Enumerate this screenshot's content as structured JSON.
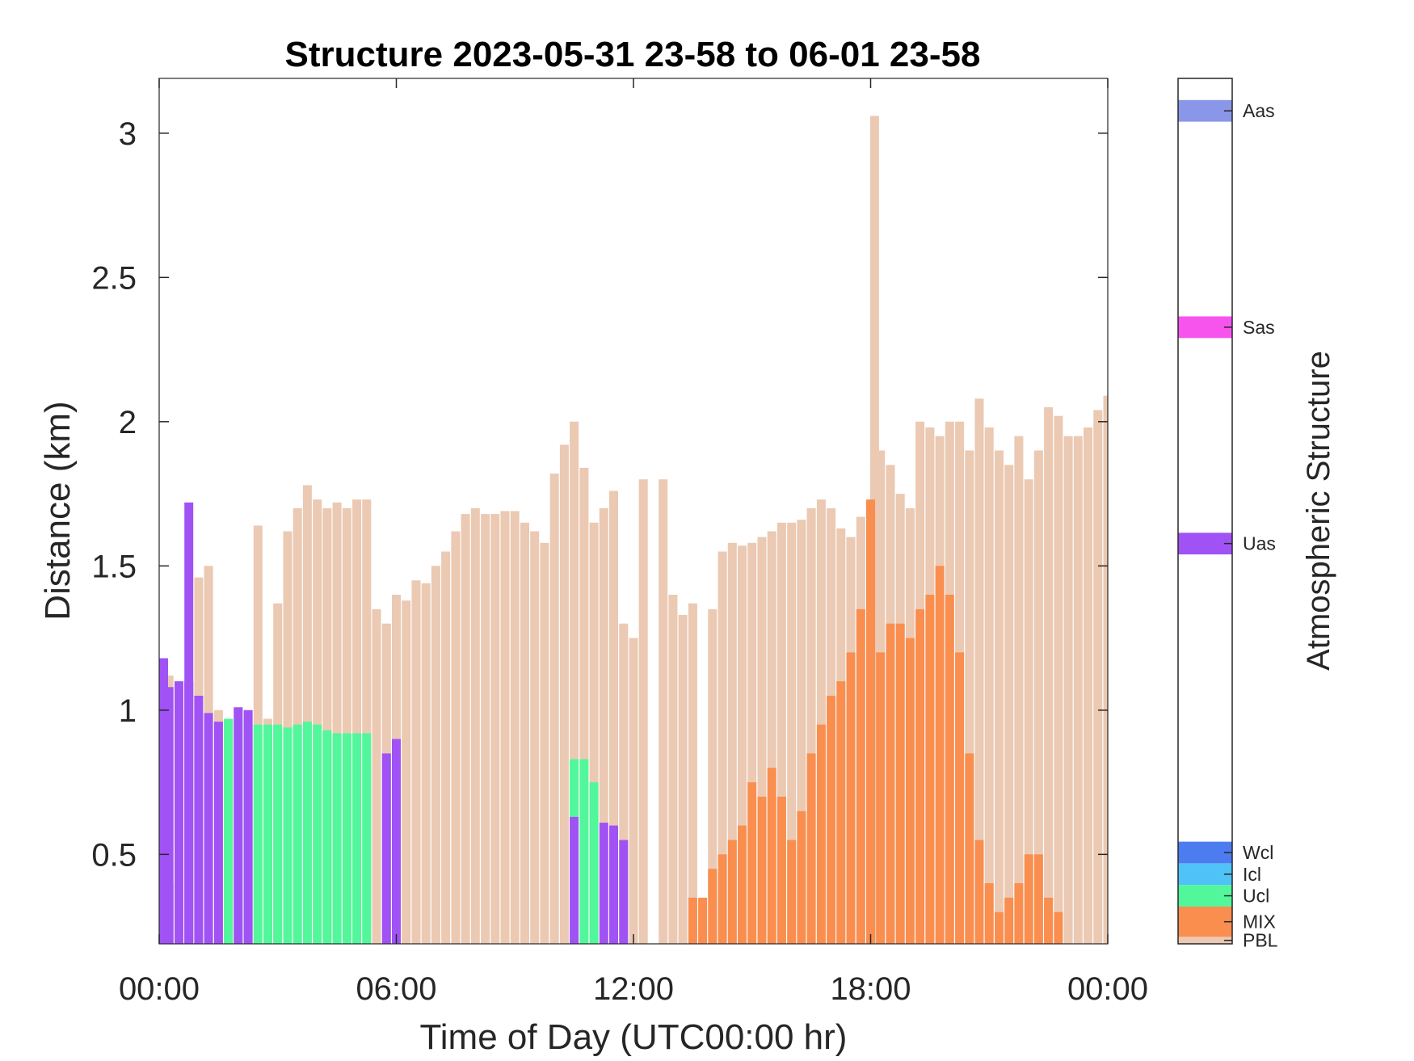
{
  "chart_data": {
    "type": "area",
    "title": "Structure 2023-05-31 23-58 to 06-01 23-58",
    "xlabel": "Time of Day (UTC00:00 hr)",
    "ylabel": "Distance (km)",
    "xlim": [
      0,
      24
    ],
    "ylim": [
      0.19,
      3.19
    ],
    "x_tick_labels": [
      "00:00",
      "06:00",
      "12:00",
      "18:00",
      "00:00"
    ],
    "x_tick_values": [
      0,
      6,
      12,
      18,
      24
    ],
    "y_ticks": [
      0.5,
      1,
      1.5,
      2,
      2.5,
      3
    ],
    "y_tick_labels": [
      "0.5",
      "1",
      "1.5",
      "2",
      "2.5",
      "3"
    ],
    "colorbar": {
      "label": "Atmospheric Structure",
      "categories": [
        {
          "name": "Aas",
          "color": "#8a96e8"
        },
        {
          "name": "Sas",
          "color": "#f754ee"
        },
        {
          "name": "Uas",
          "color": "#a052f5"
        },
        {
          "name": "Wcl",
          "color": "#4d7bf0"
        },
        {
          "name": "Icl",
          "color": "#4fc3f7"
        },
        {
          "name": "Ucl",
          "color": "#52f79b"
        },
        {
          "name": "MIX",
          "color": "#f98e4f"
        },
        {
          "name": "PBL",
          "color": "#ebc9b2"
        }
      ]
    },
    "series": [
      {
        "name": "PBL",
        "color": "#ebc9b2",
        "points": [
          [
            0.0,
            1.18
          ],
          [
            0.25,
            1.12
          ],
          [
            0.5,
            1.03
          ],
          [
            0.75,
            1.1
          ],
          [
            1.0,
            1.46
          ],
          [
            1.25,
            1.5
          ],
          [
            1.5,
            1.0
          ],
          [
            1.75,
            0.97
          ],
          [
            2.0,
            1.01
          ],
          [
            2.25,
            1.0
          ],
          [
            2.5,
            1.64
          ],
          [
            2.75,
            0.97
          ],
          [
            3.0,
            1.37
          ],
          [
            3.25,
            1.62
          ],
          [
            3.5,
            1.7
          ],
          [
            3.75,
            1.78
          ],
          [
            4.0,
            1.73
          ],
          [
            4.25,
            1.7
          ],
          [
            4.5,
            1.72
          ],
          [
            4.75,
            1.7
          ],
          [
            5.0,
            1.73
          ],
          [
            5.25,
            1.73
          ],
          [
            5.5,
            1.35
          ],
          [
            5.75,
            1.3
          ],
          [
            6.0,
            1.4
          ],
          [
            6.25,
            1.38
          ],
          [
            6.5,
            1.45
          ],
          [
            6.75,
            1.44
          ],
          [
            7.0,
            1.5
          ],
          [
            7.25,
            1.55
          ],
          [
            7.5,
            1.62
          ],
          [
            7.75,
            1.68
          ],
          [
            8.0,
            1.7
          ],
          [
            8.25,
            1.68
          ],
          [
            8.5,
            1.68
          ],
          [
            8.75,
            1.69
          ],
          [
            9.0,
            1.69
          ],
          [
            9.25,
            1.65
          ],
          [
            9.5,
            1.62
          ],
          [
            9.75,
            1.58
          ],
          [
            10.0,
            1.82
          ],
          [
            10.25,
            1.92
          ],
          [
            10.5,
            2.0
          ],
          [
            10.75,
            1.84
          ],
          [
            11.0,
            1.65
          ],
          [
            11.25,
            1.7
          ],
          [
            11.5,
            1.76
          ],
          [
            11.75,
            1.3
          ],
          [
            12.0,
            1.25
          ],
          [
            12.25,
            1.8
          ],
          [
            12.75,
            1.8
          ],
          [
            13.0,
            1.4
          ],
          [
            13.25,
            1.33
          ],
          [
            13.5,
            1.37
          ],
          [
            14.0,
            1.35
          ],
          [
            14.25,
            1.55
          ],
          [
            14.5,
            1.58
          ],
          [
            14.75,
            1.57
          ],
          [
            15.0,
            1.58
          ],
          [
            15.25,
            1.6
          ],
          [
            15.5,
            1.62
          ],
          [
            15.75,
            1.65
          ],
          [
            16.0,
            1.65
          ],
          [
            16.25,
            1.66
          ],
          [
            16.5,
            1.7
          ],
          [
            16.75,
            1.73
          ],
          [
            17.0,
            1.7
          ],
          [
            17.25,
            1.63
          ],
          [
            17.5,
            1.6
          ],
          [
            17.75,
            1.67
          ],
          [
            18.0,
            1.73
          ],
          [
            18.1,
            3.06
          ],
          [
            18.25,
            1.9
          ],
          [
            18.5,
            1.85
          ],
          [
            18.75,
            1.75
          ],
          [
            19.0,
            1.7
          ],
          [
            19.25,
            2.0
          ],
          [
            19.5,
            1.98
          ],
          [
            19.75,
            1.95
          ],
          [
            20.0,
            2.0
          ],
          [
            20.25,
            2.0
          ],
          [
            20.5,
            1.9
          ],
          [
            20.75,
            2.08
          ],
          [
            21.0,
            1.98
          ],
          [
            21.25,
            1.9
          ],
          [
            21.5,
            1.85
          ],
          [
            21.75,
            1.95
          ],
          [
            22.0,
            1.8
          ],
          [
            22.25,
            1.9
          ],
          [
            22.5,
            2.05
          ],
          [
            22.75,
            2.02
          ],
          [
            23.0,
            1.95
          ],
          [
            23.25,
            1.95
          ],
          [
            23.5,
            1.98
          ],
          [
            23.75,
            2.04
          ],
          [
            24.0,
            2.09
          ]
        ]
      },
      {
        "name": "MIX",
        "color": "#f98e4f",
        "points": [
          [
            0.0,
            0.56
          ],
          [
            0.25,
            0.4
          ],
          [
            13.5,
            0.35
          ],
          [
            13.75,
            0.35
          ],
          [
            14.0,
            0.45
          ],
          [
            14.25,
            0.5
          ],
          [
            14.5,
            0.55
          ],
          [
            14.75,
            0.6
          ],
          [
            15.0,
            0.75
          ],
          [
            15.25,
            0.7
          ],
          [
            15.5,
            0.8
          ],
          [
            15.75,
            0.7
          ],
          [
            16.0,
            0.55
          ],
          [
            16.25,
            0.65
          ],
          [
            16.5,
            0.85
          ],
          [
            16.75,
            0.95
          ],
          [
            17.0,
            1.05
          ],
          [
            17.25,
            1.1
          ],
          [
            17.5,
            1.2
          ],
          [
            17.75,
            1.35
          ],
          [
            18.0,
            1.73
          ],
          [
            18.25,
            1.2
          ],
          [
            18.5,
            1.3
          ],
          [
            18.75,
            1.3
          ],
          [
            19.0,
            1.25
          ],
          [
            19.25,
            1.35
          ],
          [
            19.5,
            1.4
          ],
          [
            19.75,
            1.5
          ],
          [
            20.0,
            1.4
          ],
          [
            20.25,
            1.2
          ],
          [
            20.5,
            0.85
          ],
          [
            20.75,
            0.55
          ],
          [
            21.0,
            0.4
          ],
          [
            21.25,
            0.3
          ],
          [
            21.5,
            0.35
          ],
          [
            21.75,
            0.4
          ],
          [
            22.0,
            0.5
          ],
          [
            22.25,
            0.5
          ],
          [
            22.5,
            0.35
          ],
          [
            22.75,
            0.3
          ]
        ]
      },
      {
        "name": "Ucl",
        "color": "#52f79b",
        "points": [
          [
            1.75,
            0.97
          ],
          [
            2.0,
            0.96
          ],
          [
            2.25,
            0.96
          ],
          [
            2.5,
            0.95
          ],
          [
            2.75,
            0.95
          ],
          [
            3.0,
            0.95
          ],
          [
            3.25,
            0.94
          ],
          [
            3.5,
            0.95
          ],
          [
            3.75,
            0.96
          ],
          [
            4.0,
            0.95
          ],
          [
            4.25,
            0.93
          ],
          [
            4.5,
            0.92
          ],
          [
            4.75,
            0.92
          ],
          [
            5.0,
            0.92
          ],
          [
            5.25,
            0.92
          ],
          [
            10.5,
            0.83
          ],
          [
            10.75,
            0.83
          ],
          [
            11.0,
            0.75
          ]
        ]
      },
      {
        "name": "Uas",
        "color": "#a052f5",
        "points": [
          [
            0.05,
            1.18
          ],
          [
            0.25,
            1.08
          ],
          [
            0.5,
            1.1
          ],
          [
            0.75,
            1.1
          ],
          [
            0.75,
            1.72
          ],
          [
            1.0,
            1.05
          ],
          [
            1.25,
            0.99
          ],
          [
            1.5,
            0.96
          ],
          [
            2.0,
            1.01
          ],
          [
            2.25,
            1.0
          ],
          [
            5.75,
            0.85
          ],
          [
            6.0,
            0.9
          ],
          [
            10.5,
            0.63
          ],
          [
            11.25,
            0.61
          ],
          [
            11.5,
            0.6
          ],
          [
            11.75,
            0.55
          ]
        ]
      }
    ]
  }
}
